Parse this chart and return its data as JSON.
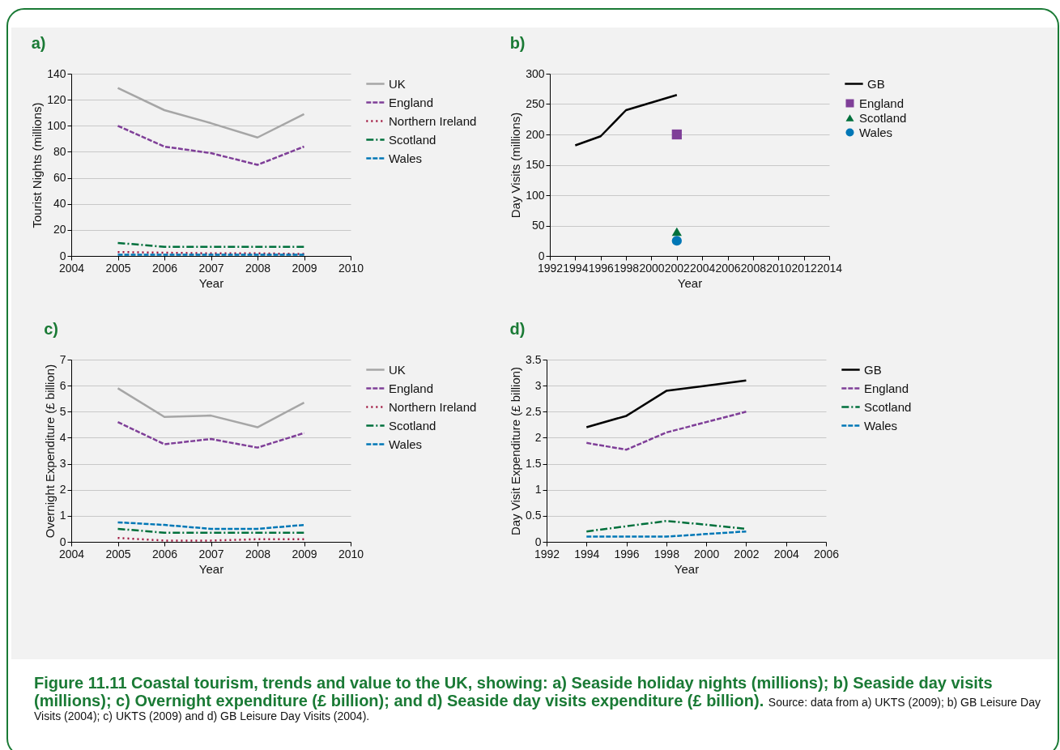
{
  "chart_data": [
    {
      "type": "line",
      "title": "a)",
      "xlabel": "Year",
      "ylabel": "Tourist Nights (millions)",
      "x": [
        2005,
        2006,
        2007,
        2008,
        2009
      ],
      "xlim": [
        2004,
        2010
      ],
      "xticks": [
        2004,
        2005,
        2006,
        2007,
        2008,
        2009,
        2010
      ],
      "ylim": [
        0,
        140
      ],
      "yticks": [
        0,
        20,
        40,
        60,
        80,
        100,
        120,
        140
      ],
      "grid": "y",
      "legend": "right",
      "series": [
        {
          "name": "UK",
          "color": "#a6a6a6",
          "line_style": "solid",
          "values": [
            129,
            112,
            102,
            91,
            109
          ]
        },
        {
          "name": "England",
          "color": "#7f3f98",
          "line_style": "dashed",
          "values": [
            100,
            84,
            79,
            70,
            84
          ]
        },
        {
          "name": "Northern Ireland",
          "color": "#a0153e",
          "line_style": "dotted",
          "values": [
            3,
            2.5,
            2,
            2,
            1.5
          ]
        },
        {
          "name": "Scotland",
          "color": "#00703c",
          "line_style": "dashdot",
          "values": [
            10,
            7,
            7,
            7,
            7
          ]
        },
        {
          "name": "Wales",
          "color": "#0077b6",
          "line_style": "dashed",
          "values": [
            1,
            1,
            1,
            1,
            1
          ]
        }
      ]
    },
    {
      "type": "line",
      "title": "b)",
      "xlabel": "Year",
      "ylabel": "Day Visits (millions)",
      "xlim": [
        1992,
        2014
      ],
      "xticks": [
        1992,
        1994,
        1996,
        1998,
        2000,
        2002,
        2004,
        2006,
        2008,
        2010,
        2012,
        2014
      ],
      "ylim": [
        0,
        300
      ],
      "yticks": [
        0,
        50,
        100,
        150,
        200,
        250,
        300
      ],
      "grid": "y",
      "legend": "right",
      "series": [
        {
          "name": "GB",
          "color": "#000000",
          "line_style": "solid",
          "x": [
            1994,
            1996,
            1998,
            2002
          ],
          "values": [
            182,
            197,
            240,
            265
          ]
        },
        {
          "name": "England",
          "type": "scatter",
          "marker": "square",
          "color": "#7f3f98",
          "x": [
            2002
          ],
          "values": [
            200
          ]
        },
        {
          "name": "Scotland",
          "type": "scatter",
          "marker": "triangle",
          "color": "#00703c",
          "x": [
            2002
          ],
          "values": [
            40
          ]
        },
        {
          "name": "Wales",
          "type": "scatter",
          "marker": "circle",
          "color": "#0077b6",
          "x": [
            2002
          ],
          "values": [
            25
          ]
        }
      ]
    },
    {
      "type": "line",
      "title": "c)",
      "xlabel": "Year",
      "ylabel": "Overnight Expenditure (£ billion)",
      "x": [
        2005,
        2006,
        2007,
        2008,
        2009
      ],
      "xlim": [
        2004,
        2010
      ],
      "xticks": [
        2004,
        2005,
        2006,
        2007,
        2008,
        2009,
        2010
      ],
      "ylim": [
        0,
        7
      ],
      "yticks": [
        0,
        1,
        2,
        3,
        4,
        5,
        6,
        7
      ],
      "grid": "y",
      "legend": "right",
      "series": [
        {
          "name": "UK",
          "color": "#a6a6a6",
          "line_style": "solid",
          "values": [
            5.9,
            4.8,
            4.85,
            4.4,
            5.35
          ]
        },
        {
          "name": "England",
          "color": "#7f3f98",
          "line_style": "dashed",
          "values": [
            4.6,
            3.75,
            3.95,
            3.62,
            4.18
          ]
        },
        {
          "name": "Northern Ireland",
          "color": "#a0153e",
          "line_style": "dotted",
          "values": [
            0.15,
            0.05,
            0.05,
            0.1,
            0.1
          ]
        },
        {
          "name": "Scotland",
          "color": "#00703c",
          "line_style": "dashdot",
          "values": [
            0.5,
            0.35,
            0.35,
            0.35,
            0.35
          ]
        },
        {
          "name": "Wales",
          "color": "#0077b6",
          "line_style": "dashed",
          "values": [
            0.75,
            0.65,
            0.5,
            0.5,
            0.65
          ]
        }
      ]
    },
    {
      "type": "line",
      "title": "d)",
      "xlabel": "Year",
      "ylabel": "Day Visit Expenditure (£ billion)",
      "x": [
        1994,
        1996,
        1998,
        2000,
        2002
      ],
      "xlim": [
        1992,
        2006
      ],
      "xticks": [
        1992,
        1994,
        1996,
        1998,
        2000,
        2002,
        2004,
        2006
      ],
      "ylim": [
        0,
        3.5
      ],
      "yticks": [
        0,
        0.5,
        1,
        1.5,
        2,
        2.5,
        3,
        3.5
      ],
      "grid": "y",
      "legend": "right",
      "series": [
        {
          "name": "GB",
          "color": "#000000",
          "line_style": "solid",
          "values": [
            2.2,
            2.42,
            2.9,
            3.0,
            3.1
          ]
        },
        {
          "name": "England",
          "color": "#7f3f98",
          "line_style": "dashed",
          "values": [
            1.9,
            1.77,
            2.1,
            2.3,
            2.5
          ]
        },
        {
          "name": "Scotland",
          "color": "#00703c",
          "line_style": "dashdot",
          "values": [
            0.2,
            0.3,
            0.4,
            0.33,
            0.25
          ]
        },
        {
          "name": "Wales",
          "color": "#0077b6",
          "line_style": "dashed",
          "values": [
            0.1,
            0.1,
            0.1,
            0.15,
            0.2
          ]
        }
      ],
      "annotations": [
        "Figure 11.11 Coastal tourism, trends and value to the UK, showing: a) Seaside holiday nights (millions); b) Seaside day visits (millions); c) Overnight expenditure (£ billion); and d) Seaside day visits expenditure (£ billion).",
        "Source: data from a) UKTS (2009); b) GB Leisure Day Visits (2004); c) UKTS (2009) and d) GB Leisure Day Visits (2004)."
      ]
    }
  ]
}
